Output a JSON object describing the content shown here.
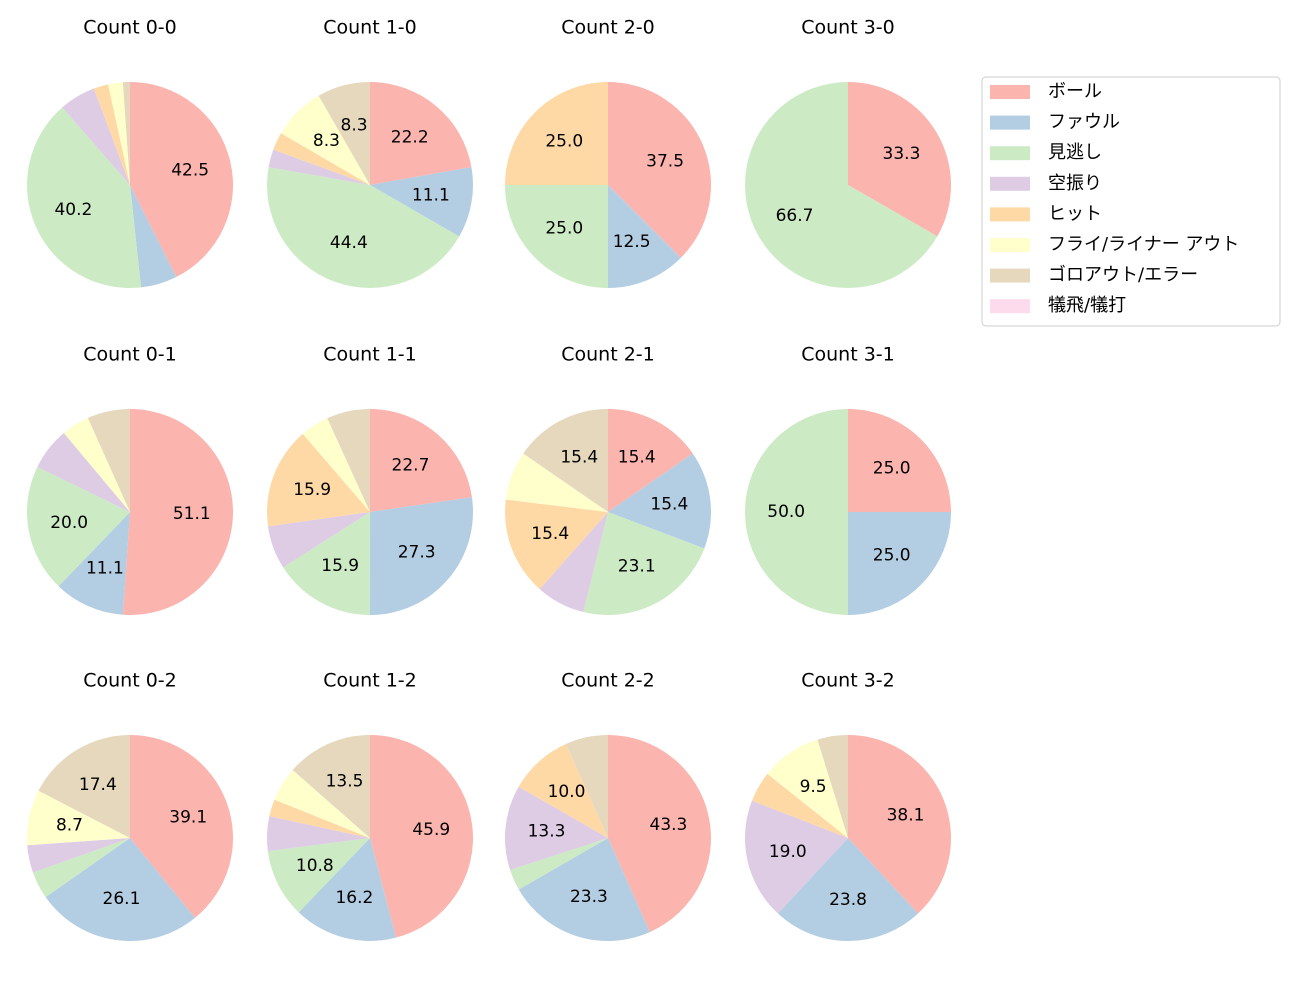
{
  "chart_data": {
    "type": "pie",
    "categories": [
      "ボール",
      "ファウル",
      "見逃し",
      "空振り",
      "ヒット",
      "フライ/ライナー アウト",
      "ゴロアウト/エラー",
      "犠飛/犠打"
    ],
    "colors": [
      "#fbb4ae",
      "#b3cde3",
      "#ccebc5",
      "#decbe4",
      "#fed9a6",
      "#ffffcc",
      "#e5d8bd",
      "#fddaec"
    ],
    "pies": [
      {
        "title": "Count 0-0",
        "values": [
          42.5,
          5.7,
          40.2,
          5.7,
          2.3,
          2.3,
          1.1,
          0
        ],
        "value_labels": [
          "42.5",
          null,
          "40.2",
          null,
          null,
          null,
          null,
          null
        ]
      },
      {
        "title": "Count 1-0",
        "values": [
          22.2,
          11.1,
          44.4,
          2.8,
          2.8,
          8.3,
          8.3,
          0
        ],
        "value_labels": [
          "22.2",
          "11.1",
          "44.4",
          null,
          null,
          "8.3",
          "8.3",
          null
        ]
      },
      {
        "title": "Count 2-0",
        "values": [
          37.5,
          12.5,
          25.0,
          0,
          25.0,
          0,
          0,
          0
        ],
        "value_labels": [
          "37.5",
          "12.5",
          "25.0",
          null,
          "25.0",
          null,
          null,
          null
        ]
      },
      {
        "title": "Count 3-0",
        "values": [
          33.3,
          0,
          66.7,
          0,
          0,
          0,
          0,
          0
        ],
        "value_labels": [
          "33.3",
          null,
          "66.7",
          null,
          null,
          null,
          null,
          null
        ]
      },
      {
        "title": "Count 0-1",
        "values": [
          51.1,
          11.1,
          20.0,
          6.7,
          0,
          4.4,
          6.7,
          0
        ],
        "value_labels": [
          "51.1",
          "11.1",
          "20.0",
          null,
          null,
          null,
          null,
          null
        ]
      },
      {
        "title": "Count 1-1",
        "values": [
          22.7,
          27.3,
          15.9,
          6.8,
          15.9,
          4.5,
          6.8,
          0
        ],
        "value_labels": [
          "22.7",
          "27.3",
          "15.9",
          null,
          "15.9",
          null,
          null,
          null
        ]
      },
      {
        "title": "Count 2-1",
        "values": [
          15.4,
          15.4,
          23.1,
          7.7,
          15.4,
          7.7,
          15.4,
          0
        ],
        "value_labels": [
          "15.4",
          "15.4",
          "23.1",
          null,
          "15.4",
          null,
          "15.4",
          null
        ]
      },
      {
        "title": "Count 3-1",
        "values": [
          25.0,
          25.0,
          50.0,
          0,
          0,
          0,
          0,
          0
        ],
        "value_labels": [
          "25.0",
          "25.0",
          "50.0",
          null,
          null,
          null,
          null,
          null
        ]
      },
      {
        "title": "Count 0-2",
        "values": [
          39.1,
          26.1,
          4.3,
          4.3,
          0,
          8.7,
          17.4,
          0
        ],
        "value_labels": [
          "39.1",
          "26.1",
          null,
          null,
          null,
          "8.7",
          "17.4",
          null
        ]
      },
      {
        "title": "Count 1-2",
        "values": [
          45.9,
          16.2,
          10.8,
          5.4,
          2.7,
          5.4,
          13.5,
          0
        ],
        "value_labels": [
          "45.9",
          "16.2",
          "10.8",
          null,
          null,
          null,
          "13.5",
          null
        ]
      },
      {
        "title": "Count 2-2",
        "values": [
          43.3,
          23.3,
          3.3,
          13.3,
          10.0,
          0,
          6.7,
          0
        ],
        "value_labels": [
          "43.3",
          "23.3",
          null,
          "13.3",
          "10.0",
          null,
          null,
          null
        ]
      },
      {
        "title": "Count 3-2",
        "values": [
          38.1,
          23.8,
          0,
          19.0,
          4.8,
          9.5,
          4.8,
          0
        ],
        "value_labels": [
          "38.1",
          "23.8",
          null,
          "19.0",
          null,
          "9.5",
          null,
          null
        ]
      }
    ]
  }
}
